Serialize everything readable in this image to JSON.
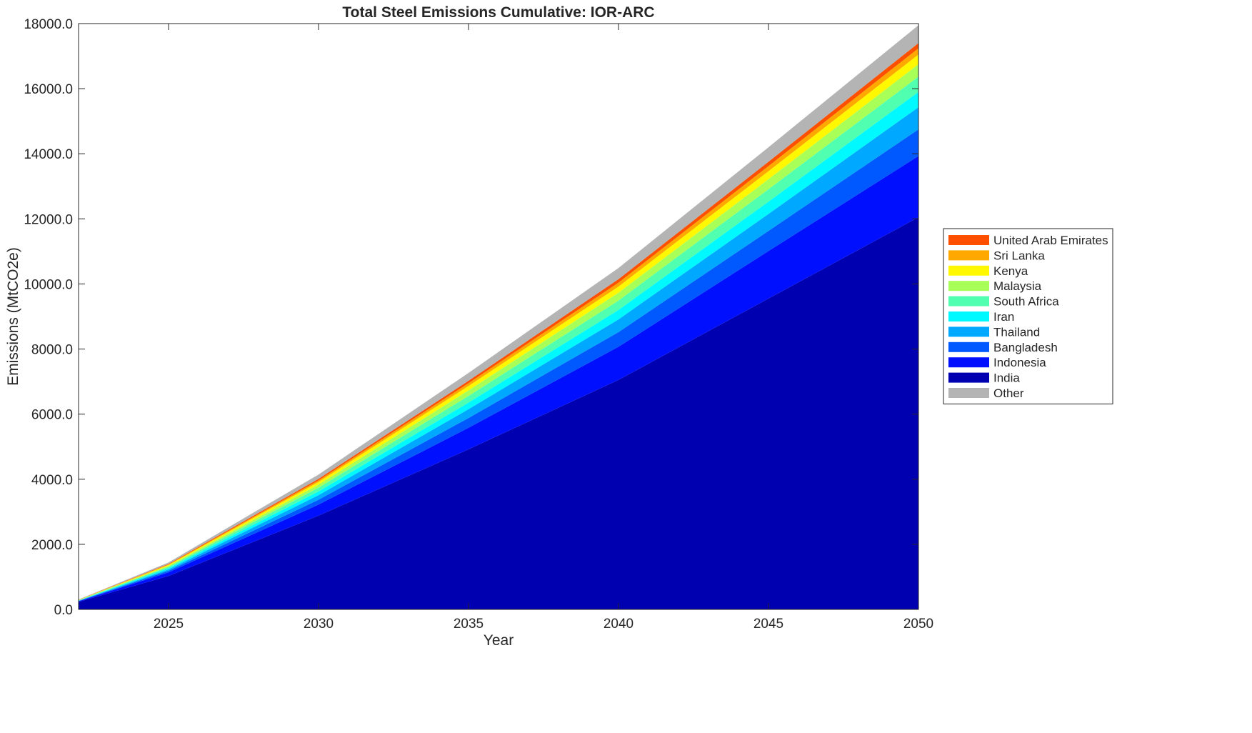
{
  "chart_data": {
    "type": "area",
    "stacked": true,
    "title": "Total Steel Emissions Cumulative: IOR-ARC",
    "xlabel": "Year",
    "ylabel": "Emissions (MtCO2e)",
    "xlim": [
      2022,
      2050
    ],
    "ylim": [
      0,
      18000
    ],
    "xticks": [
      2025,
      2030,
      2035,
      2040,
      2045,
      2050
    ],
    "yticks": [
      0,
      2000,
      4000,
      6000,
      8000,
      10000,
      12000,
      14000,
      16000,
      18000
    ],
    "ytick_labels": [
      "0.0",
      "2000.0",
      "4000.0",
      "6000.0",
      "8000.0",
      "10000.0",
      "12000.0",
      "14000.0",
      "16000.0",
      "18000.0"
    ],
    "grid": false,
    "legend_position": "outside right",
    "x": [
      2022,
      2025,
      2030,
      2035,
      2040,
      2045,
      2050
    ],
    "series": [
      {
        "name": "India",
        "color": "#0000B0",
        "values": [
          230,
          1030,
          2880,
          4920,
          7050,
          9550,
          12050
        ]
      },
      {
        "name": "Indonesia",
        "color": "#0010FF",
        "values": [
          20,
          110,
          340,
          660,
          1020,
          1460,
          1880
        ]
      },
      {
        "name": "Bangladesh",
        "color": "#0058FF",
        "values": [
          8,
          45,
          150,
          300,
          450,
          620,
          820
        ]
      },
      {
        "name": "Thailand",
        "color": "#00A8FF",
        "values": [
          8,
          45,
          140,
          270,
          390,
          520,
          680
        ]
      },
      {
        "name": "Iran",
        "color": "#00F8FF",
        "values": [
          7,
          38,
          115,
          205,
          290,
          380,
          470
        ]
      },
      {
        "name": "South Africa",
        "color": "#50FFB0",
        "values": [
          7,
          38,
          115,
          205,
          290,
          380,
          470
        ]
      },
      {
        "name": "Malaysia",
        "color": "#A8FF58",
        "values": [
          6,
          32,
          95,
          170,
          240,
          310,
          380
        ]
      },
      {
        "name": "Kenya",
        "color": "#FFF800",
        "values": [
          6,
          28,
          80,
          135,
          190,
          245,
          300
        ]
      },
      {
        "name": "Sri Lanka",
        "color": "#FFA800",
        "values": [
          3,
          18,
          50,
          85,
          120,
          155,
          190
        ]
      },
      {
        "name": "United Arab Emirates",
        "color": "#FF5000",
        "values": [
          3,
          16,
          45,
          75,
          105,
          135,
          160
        ]
      },
      {
        "name": "Other",
        "color": "#B4B4B4",
        "values": [
          7,
          45,
          135,
          240,
          345,
          445,
          550
        ]
      }
    ],
    "legend_order": [
      "United Arab Emirates",
      "Sri Lanka",
      "Kenya",
      "Malaysia",
      "South Africa",
      "Iran",
      "Thailand",
      "Bangladesh",
      "Indonesia",
      "India",
      "Other"
    ]
  }
}
